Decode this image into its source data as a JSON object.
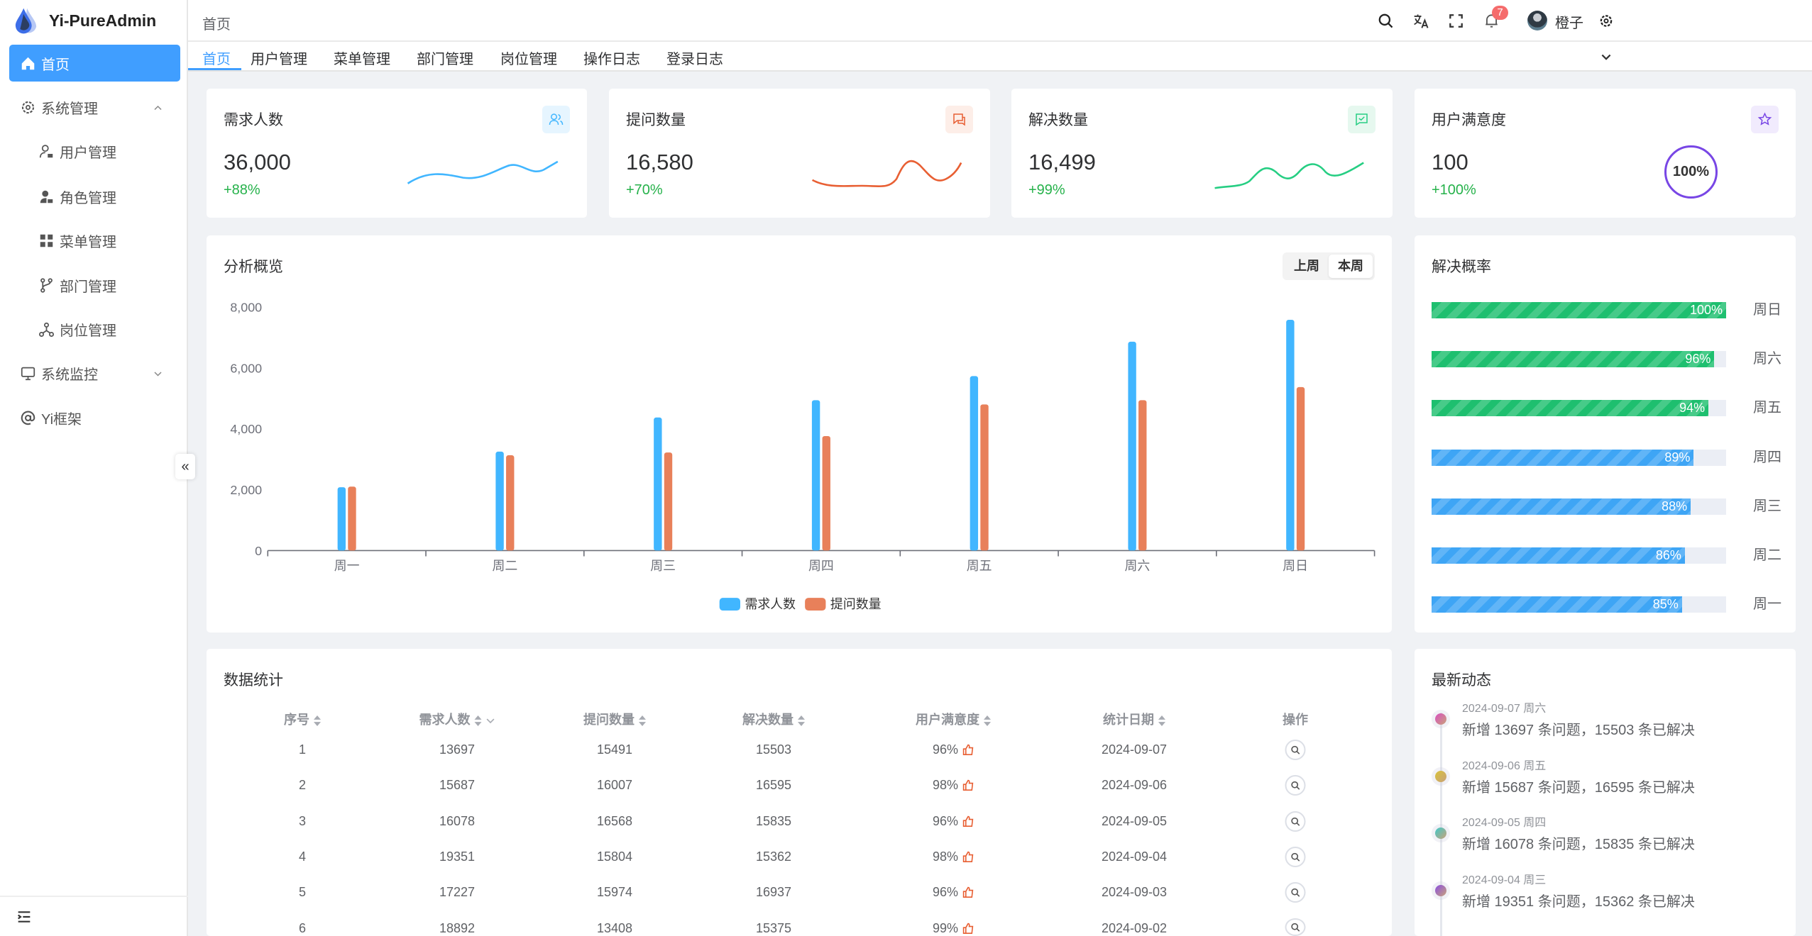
{
  "app": {
    "title": "Yi-PureAdmin"
  },
  "sidebar": {
    "items": [
      {
        "label": "首页",
        "icon": "home-icon",
        "active": true
      },
      {
        "label": "系统管理",
        "icon": "gear-icon",
        "expanded": true
      },
      {
        "label": "用户管理",
        "icon": "user-lock-icon"
      },
      {
        "label": "角色管理",
        "icon": "role-icon"
      },
      {
        "label": "菜单管理",
        "icon": "grid-icon"
      },
      {
        "label": "部门管理",
        "icon": "branch-icon"
      },
      {
        "label": "岗位管理",
        "icon": "network-icon"
      },
      {
        "label": "系统监控",
        "icon": "monitor-icon",
        "expanded": false
      },
      {
        "label": "Yi框架",
        "icon": "at-icon"
      }
    ]
  },
  "header": {
    "breadcrumb": "首页",
    "user_name": "橙子",
    "notification_count": "7",
    "icons": [
      "search-icon",
      "translate-icon",
      "fullscreen-icon",
      "bell-icon",
      "gear-icon"
    ]
  },
  "tabs": [
    {
      "label": "首页",
      "active": true
    },
    {
      "label": "用户管理"
    },
    {
      "label": "菜单管理"
    },
    {
      "label": "部门管理"
    },
    {
      "label": "岗位管理"
    },
    {
      "label": "操作日志"
    },
    {
      "label": "登录日志"
    }
  ],
  "stats": [
    {
      "title": "需求人数",
      "value": "36,000",
      "change": "+88%",
      "color": "#41b6ff",
      "icon": "users-icon"
    },
    {
      "title": "提问数量",
      "value": "16,580",
      "change": "+70%",
      "color": "#e85f33",
      "icon": "chat-icon"
    },
    {
      "title": "解决数量",
      "value": "16,499",
      "change": "+99%",
      "color": "#26ce83",
      "icon": "check-chat-icon"
    },
    {
      "title": "用户满意度",
      "value": "100",
      "change": "+100%",
      "color": "#7846e5",
      "icon": "star-icon",
      "ring": "100%"
    }
  ],
  "overview": {
    "title": "分析概览",
    "toggle": [
      "上周",
      "本周"
    ],
    "selected": "本周"
  },
  "chart_data": {
    "type": "bar",
    "categories": [
      "周一",
      "周二",
      "周三",
      "周四",
      "周五",
      "周六",
      "周日"
    ],
    "series": [
      {
        "name": "需求人数",
        "color": "#41b6ff",
        "values": [
          2080,
          3250,
          4370,
          4940,
          5730,
          6860,
          7580
        ]
      },
      {
        "name": "提问数量",
        "color": "#e8805a",
        "values": [
          2100,
          3130,
          3220,
          3760,
          4800,
          4940,
          5370
        ]
      }
    ],
    "yticks": [
      "0",
      "2,000",
      "4,000",
      "6,000",
      "8,000"
    ],
    "ylim": [
      0,
      8000
    ],
    "legend": "bottom",
    "grid": false
  },
  "solve_rate": {
    "title": "解决概率",
    "items": [
      {
        "label": "周日",
        "value": 100,
        "text": "100%",
        "color": "#1ebf6f"
      },
      {
        "label": "周六",
        "value": 96,
        "text": "96%",
        "color": "#1ebf6f"
      },
      {
        "label": "周五",
        "value": 94,
        "text": "94%",
        "color": "#1ebf6f"
      },
      {
        "label": "周四",
        "value": 89,
        "text": "89%",
        "color": "#3ea5f5"
      },
      {
        "label": "周三",
        "value": 88,
        "text": "88%",
        "color": "#3ea5f5"
      },
      {
        "label": "周二",
        "value": 86,
        "text": "86%",
        "color": "#3ea5f5"
      },
      {
        "label": "周一",
        "value": 85,
        "text": "85%",
        "color": "#3ea5f5"
      }
    ]
  },
  "table": {
    "title": "数据统计",
    "columns": [
      "序号",
      "需求人数",
      "提问数量",
      "解决数量",
      "用户满意度",
      "统计日期",
      "操作"
    ],
    "rows": [
      [
        "1",
        "13697",
        "15491",
        "15503",
        "96%",
        "2024-09-07"
      ],
      [
        "2",
        "15687",
        "16007",
        "16595",
        "98%",
        "2024-09-06"
      ],
      [
        "3",
        "16078",
        "16568",
        "15835",
        "96%",
        "2024-09-05"
      ],
      [
        "4",
        "19351",
        "15804",
        "15362",
        "98%",
        "2024-09-04"
      ],
      [
        "5",
        "17227",
        "15974",
        "16937",
        "96%",
        "2024-09-03"
      ],
      [
        "6",
        "18892",
        "13408",
        "15375",
        "99%",
        "2024-09-02"
      ]
    ]
  },
  "activity": {
    "title": "最新动态",
    "items": [
      {
        "date": "2024-09-07 周六",
        "text": "新增 13697 条问题，15503 条已解决",
        "color": "#d94fc0"
      },
      {
        "date": "2024-09-06 周五",
        "text": "新增 15687 条问题，16595 条已解决",
        "color": "#d8c23a"
      },
      {
        "date": "2024-09-05 周四",
        "text": "新增 16078 条问题，15835 条已解决",
        "color": "#3fc9c9"
      },
      {
        "date": "2024-09-04 周三",
        "text": "新增 19351 条问题，15362 条已解决",
        "color": "#8a4fe0"
      }
    ]
  }
}
